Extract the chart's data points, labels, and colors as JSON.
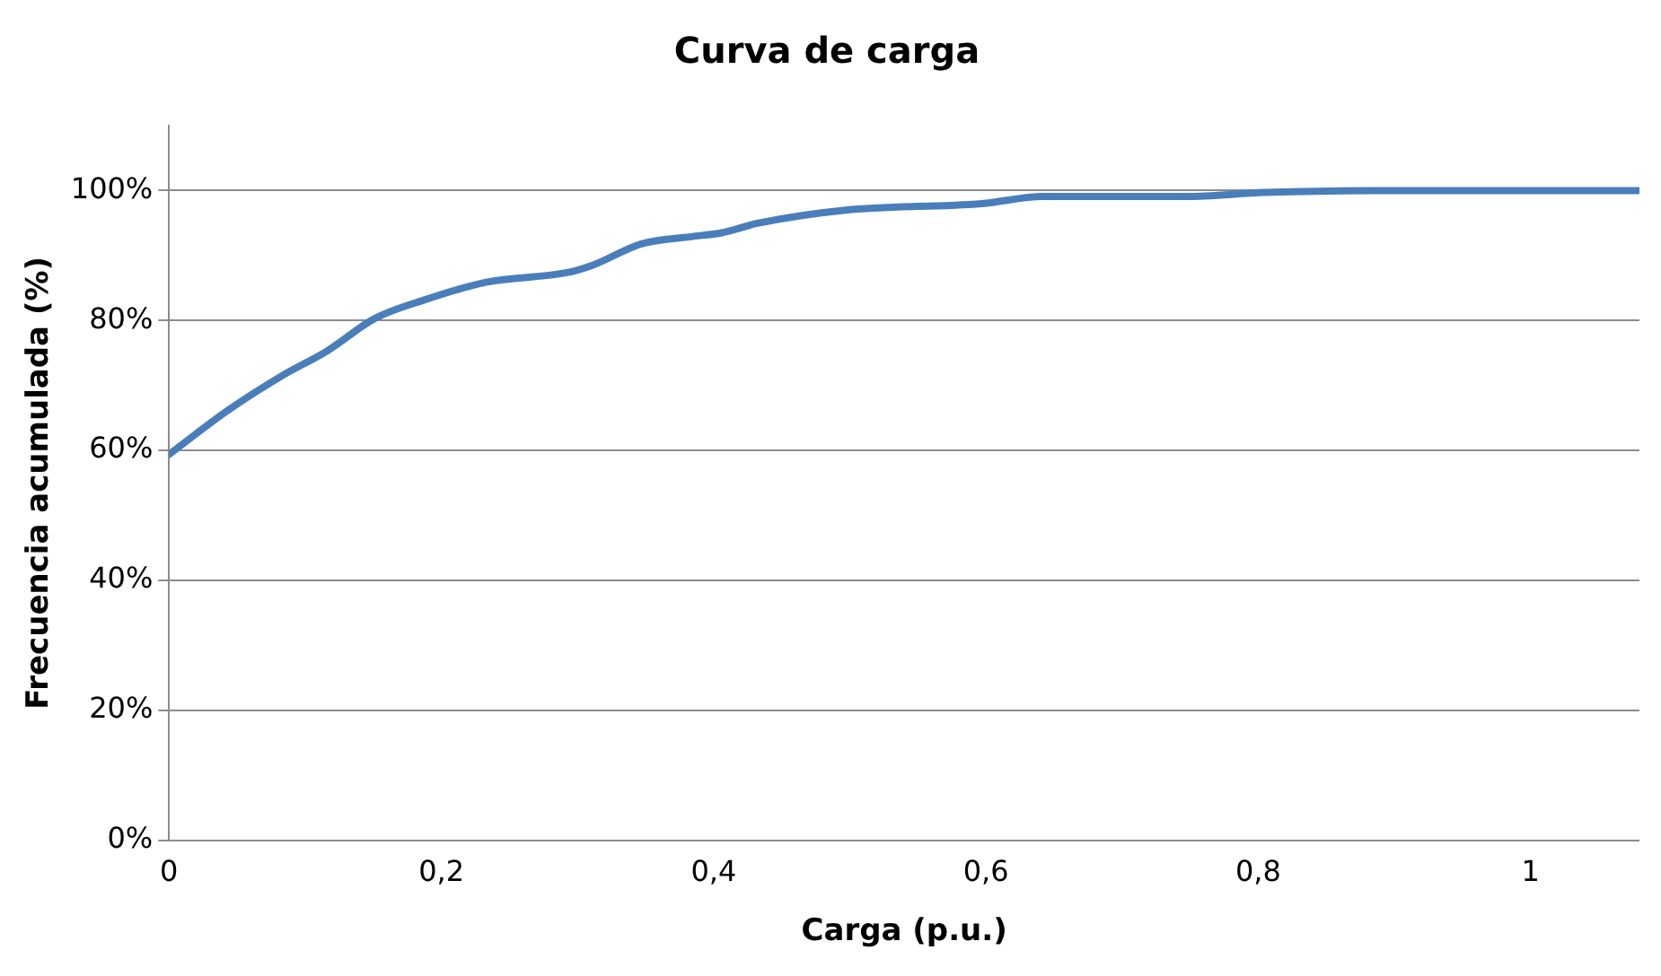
{
  "chart_data": {
    "type": "line",
    "title": "Curva de carga",
    "xlabel": "Carga (p.u.)",
    "ylabel": "Frecuencia acumulada (%)",
    "x": [
      0,
      0.042,
      0.083,
      0.116,
      0.151,
      0.188,
      0.233,
      0.293,
      0.311,
      0.347,
      0.383,
      0.406,
      0.433,
      0.497,
      0.597,
      0.642,
      0.747,
      0.805,
      0.9,
      1.0,
      1.08
    ],
    "series": [
      {
        "color": "#4a7ebb",
        "values": [
          59.4,
          66,
          71.5,
          75.3,
          80.3,
          83.2,
          85.9,
          87.4,
          88.5,
          91.8,
          92.9,
          93.5,
          95,
          97,
          98,
          99.1,
          99.1,
          99.7,
          100,
          100,
          100
        ]
      }
    ],
    "xlim": [
      0,
      1.08
    ],
    "xticks": [
      {
        "value": 0,
        "label": "0"
      },
      {
        "value": 0.2,
        "label": "0,2"
      },
      {
        "value": 0.4,
        "label": "0,4"
      },
      {
        "value": 0.6,
        "label": "0,6"
      },
      {
        "value": 0.8,
        "label": "0,8"
      },
      {
        "value": 1,
        "label": "1"
      }
    ],
    "ylim": [
      0,
      110
    ],
    "yticks": [
      {
        "value": 0,
        "label": "0%"
      },
      {
        "value": 20,
        "label": "20%"
      },
      {
        "value": 40,
        "label": "40%"
      },
      {
        "value": 60,
        "label": "60%"
      },
      {
        "value": 80,
        "label": "80%"
      },
      {
        "value": 100,
        "label": "100%"
      }
    ],
    "grid": "y",
    "legend": false,
    "marker": "none",
    "line_style": "solid"
  }
}
